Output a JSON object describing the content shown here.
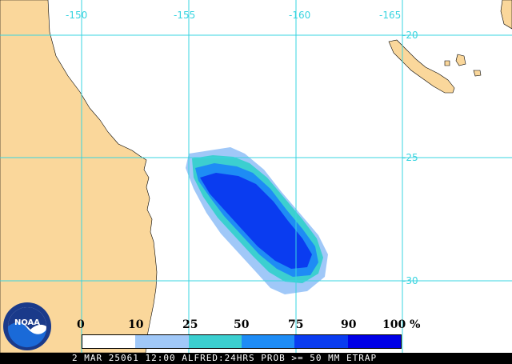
{
  "map": {
    "land_color": "#fad79b",
    "ocean_color": "#ffffff",
    "grid_color": "#38d4e0",
    "lon_labels": [
      "-150",
      "-155",
      "-160",
      "-165"
    ],
    "lat_labels": [
      "-20",
      "-25",
      "-30"
    ]
  },
  "legend": {
    "values": [
      "0",
      "10",
      "25",
      "50",
      "75",
      "90",
      "100 %"
    ],
    "colors": [
      "#ffffff",
      "#a0c8f8",
      "#3ccfd0",
      "#1e8cf5",
      "#0a3cf0",
      "#0000e6"
    ]
  },
  "caption": "2 MAR 25061 12:00 ALFRED:24HRS PROB >= 50 MM ETRAP",
  "logo": {
    "text": "NOAA"
  }
}
